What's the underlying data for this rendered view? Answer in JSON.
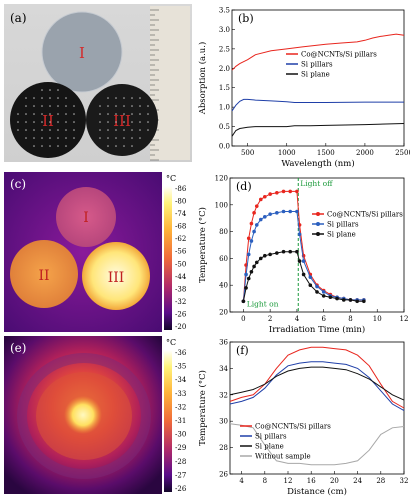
{
  "panels": {
    "a": {
      "label": "(a)",
      "discs": [
        "I",
        "II",
        "III"
      ]
    },
    "c": {
      "label": "(c)",
      "discs": [
        "I",
        "II",
        "III"
      ]
    },
    "e": {
      "label": "(e)"
    }
  },
  "colorbar_c": {
    "unit": "°C",
    "ticks": [
      "86",
      "80",
      "74",
      "68",
      "62",
      "56",
      "50",
      "44",
      "38",
      "32",
      "26",
      "20"
    ]
  },
  "colorbar_e": {
    "unit": "°C",
    "ticks": [
      "36",
      "35",
      "34",
      "33",
      "32",
      "31",
      "30",
      "29",
      "28",
      "27",
      "26"
    ]
  },
  "chart_data": [
    {
      "panel": "(b)",
      "type": "line",
      "xlabel": "Wavelength (nm)",
      "ylabel": "Absorption (a.u.)",
      "xlim": [
        300,
        2500
      ],
      "ylim": [
        0,
        3.5
      ],
      "xticks": [
        500,
        1000,
        1500,
        2000,
        2500
      ],
      "yticks": [
        0,
        0.5,
        1.0,
        1.5,
        2.0,
        2.5,
        3.0,
        3.5
      ],
      "legend": "upper-left",
      "series": [
        {
          "name": "Co@NCNTs/Si pillars",
          "color": "#e8261e",
          "x": [
            300,
            350,
            400,
            500,
            600,
            800,
            1000,
            1200,
            1500,
            1700,
            1900,
            2000,
            2100,
            2200,
            2300,
            2400,
            2500
          ],
          "y": [
            1.95,
            2.05,
            2.12,
            2.22,
            2.35,
            2.45,
            2.5,
            2.55,
            2.62,
            2.65,
            2.68,
            2.72,
            2.78,
            2.82,
            2.85,
            2.88,
            2.85
          ]
        },
        {
          "name": "Si pillars",
          "color": "#1f3fa8",
          "x": [
            300,
            350,
            400,
            450,
            500,
            600,
            800,
            1000,
            1100,
            1500,
            2000,
            2500
          ],
          "y": [
            0.9,
            1.05,
            1.15,
            1.2,
            1.2,
            1.18,
            1.16,
            1.14,
            1.12,
            1.12,
            1.13,
            1.13
          ]
        },
        {
          "name": "Si plane",
          "color": "#111111",
          "x": [
            300,
            350,
            400,
            500,
            600,
            800,
            1000,
            1100,
            1300,
            1500,
            2000,
            2500
          ],
          "y": [
            0.25,
            0.4,
            0.45,
            0.48,
            0.5,
            0.5,
            0.5,
            0.52,
            0.52,
            0.53,
            0.55,
            0.58
          ]
        }
      ]
    },
    {
      "panel": "(d)",
      "type": "line",
      "xlabel": "Irradiation Time (min)",
      "ylabel": "Temperature (°C)",
      "xlim": [
        -1,
        12
      ],
      "ylim": [
        20,
        120
      ],
      "xticks": [
        0,
        2,
        4,
        6,
        8,
        10,
        12
      ],
      "yticks": [
        20,
        40,
        60,
        80,
        100,
        120
      ],
      "legend": "right",
      "annotations": [
        {
          "text": "Light off",
          "x": 4.1
        },
        {
          "text": "Light on",
          "x": 0.1
        }
      ],
      "series": [
        {
          "name": "Co@NCNTs/Si pillars",
          "color": "#e8261e",
          "x": [
            0,
            0.2,
            0.4,
            0.6,
            0.8,
            1.0,
            1.3,
            1.6,
            2.0,
            2.5,
            3.0,
            3.5,
            4.0,
            4.2,
            4.5,
            5.0,
            5.5,
            6.0,
            6.5,
            7.0,
            7.5,
            8.0,
            8.5,
            9.0
          ],
          "y": [
            28,
            55,
            75,
            86,
            94,
            99,
            104,
            106,
            108,
            109,
            110,
            110,
            110,
            85,
            62,
            48,
            40,
            36,
            33,
            31,
            30,
            29,
            29,
            29
          ]
        },
        {
          "name": "Si pillars",
          "color": "#2b5fbf",
          "x": [
            0,
            0.2,
            0.4,
            0.6,
            0.8,
            1.0,
            1.3,
            1.6,
            2.0,
            2.5,
            3.0,
            3.5,
            4.0,
            4.2,
            4.5,
            5.0,
            5.5,
            6.0,
            6.5,
            7.0,
            7.5,
            8.0,
            8.5,
            9.0
          ],
          "y": [
            28,
            48,
            63,
            73,
            80,
            85,
            89,
            91,
            93,
            94,
            95,
            95,
            95,
            78,
            58,
            46,
            39,
            35,
            32,
            31,
            30,
            29,
            29,
            29
          ]
        },
        {
          "name": "Si plane",
          "color": "#111111",
          "x": [
            0,
            0.2,
            0.4,
            0.6,
            0.8,
            1.0,
            1.3,
            1.6,
            2.0,
            2.5,
            3.0,
            3.5,
            4.0,
            4.2,
            4.5,
            5.0,
            5.5,
            6.0,
            6.5,
            7.0,
            7.5,
            8.0,
            8.5,
            9.0
          ],
          "y": [
            28,
            38,
            45,
            50,
            54,
            57,
            60,
            62,
            63,
            64,
            65,
            65,
            65,
            58,
            48,
            40,
            35,
            32,
            31,
            30,
            29,
            29,
            28,
            28
          ]
        }
      ]
    },
    {
      "panel": "(f)",
      "type": "line",
      "xlabel": "Distance (cm)",
      "ylabel": "Temperature (°C)",
      "xlim": [
        2,
        32
      ],
      "ylim": [
        26,
        36
      ],
      "xticks": [
        4,
        8,
        12,
        16,
        20,
        24,
        28,
        32
      ],
      "yticks": [
        26,
        28,
        30,
        32,
        34,
        36
      ],
      "legend": "lower-left",
      "series": [
        {
          "name": "Co@NCNTs/Si pillars",
          "color": "#e8261e",
          "x": [
            2,
            4,
            6,
            8,
            10,
            12,
            14,
            16,
            18,
            20,
            22,
            24,
            26,
            28,
            30,
            32
          ],
          "y": [
            31.5,
            31.8,
            32.0,
            32.8,
            34.0,
            35.0,
            35.4,
            35.6,
            35.6,
            35.5,
            35.4,
            35.0,
            34.2,
            32.8,
            31.5,
            31.0
          ]
        },
        {
          "name": "Si pillars",
          "color": "#1f3fa8",
          "x": [
            2,
            4,
            6,
            8,
            10,
            12,
            14,
            16,
            18,
            20,
            22,
            24,
            26,
            28,
            30,
            32
          ],
          "y": [
            31.3,
            31.5,
            31.8,
            32.5,
            33.5,
            34.2,
            34.4,
            34.5,
            34.5,
            34.4,
            34.3,
            34.0,
            33.3,
            32.3,
            31.3,
            30.8
          ]
        },
        {
          "name": "Si plane",
          "color": "#111111",
          "x": [
            2,
            4,
            6,
            8,
            10,
            12,
            14,
            16,
            18,
            20,
            22,
            24,
            26,
            28,
            30,
            32
          ],
          "y": [
            32.0,
            32.2,
            32.4,
            32.8,
            33.4,
            33.8,
            34.0,
            34.1,
            34.1,
            34.0,
            33.9,
            33.6,
            33.2,
            32.6,
            32.0,
            31.6
          ]
        },
        {
          "name": "Without sample",
          "color": "#a8a8a8",
          "x": [
            2,
            4,
            6,
            8,
            10,
            12,
            14,
            16,
            18,
            20,
            22,
            24,
            26,
            28,
            30,
            32
          ],
          "y": [
            29.8,
            29.7,
            29.5,
            28.2,
            27.0,
            26.8,
            26.8,
            26.7,
            26.7,
            26.7,
            26.8,
            27.0,
            27.8,
            29.0,
            29.5,
            29.6
          ]
        }
      ]
    }
  ]
}
